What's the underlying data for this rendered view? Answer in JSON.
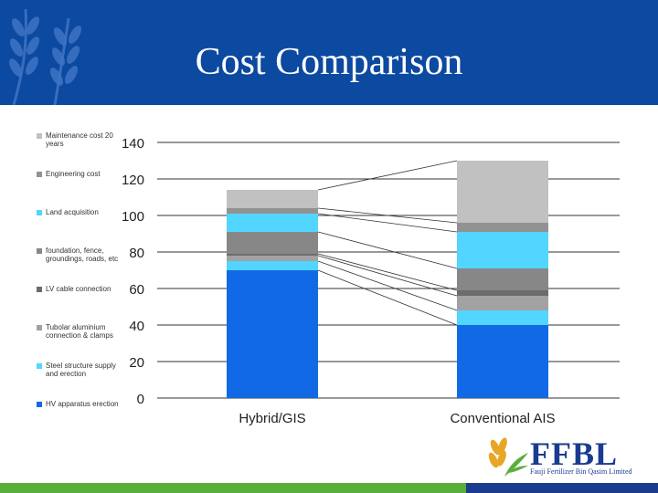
{
  "slide": {
    "title": "Cost Comparison"
  },
  "logo": {
    "name": "FFBL",
    "subtitle": "Fauji Fertilizer Bin Qasim Limited"
  },
  "colors": {
    "header": "#0c49a0",
    "accent_green": "#58b03a",
    "logo_blue": "#1a3b8f"
  },
  "chart_data": {
    "type": "bar",
    "stacked": true,
    "categories": [
      "Hybrid/GIS",
      "Conventional AIS"
    ],
    "ylim": [
      0,
      140
    ],
    "yticks": [
      "0",
      "20",
      "40",
      "60",
      "80",
      "100",
      "120",
      "140"
    ],
    "grid": true,
    "legend_position": "left",
    "series": [
      {
        "name": "HV apparatus erection",
        "color": "#1269e6",
        "values": [
          70,
          40
        ]
      },
      {
        "name": "Steel structure supply and erection",
        "color": "#52d5ff",
        "values": [
          5,
          8
        ]
      },
      {
        "name": "Tubolar aluminium connection & clamps",
        "color": "#a2a2a2",
        "values": [
          3,
          8
        ]
      },
      {
        "name": "LV cable connection",
        "color": "#6c6c6c",
        "values": [
          1,
          3
        ]
      },
      {
        "name": "foundation, fence, groundings, roads, etc",
        "color": "#878787",
        "values": [
          12,
          12
        ]
      },
      {
        "name": "Land acquisition",
        "color": "#52d5ff",
        "values": [
          10,
          20
        ]
      },
      {
        "name": "Engineering cost",
        "color": "#929292",
        "values": [
          3,
          5
        ]
      },
      {
        "name": "Maintenance cost 20 years",
        "color": "#c1c1c1",
        "values": [
          10,
          34
        ]
      }
    ]
  }
}
